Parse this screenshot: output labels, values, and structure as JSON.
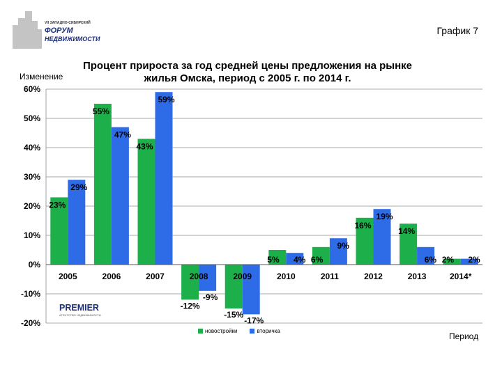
{
  "header": {
    "logo_line1": "VII ЗАПАДНО-СИБИРСКИЙ",
    "logo_line2": "ФОРУМ",
    "logo_line3": "НЕДВИЖИМОСТИ",
    "graph_number": "График 7"
  },
  "footer": {
    "logo_text": "PREMIER",
    "logo_subtext": "АГЕНТСТВО НЕДВИЖИМОСТИ"
  },
  "colors": {
    "new_buildings": "#1db04a",
    "secondary": "#2e6be6"
  },
  "chart_data": {
    "type": "bar",
    "title_line1": "Процент прироста за год средней цены предложения на рынке",
    "title_line2": "жилья Омска, период с 2005 г. по 2014 г.",
    "ylabel": "Изменение",
    "xlabel": "Период",
    "ylim": [
      -20,
      60
    ],
    "yticks": [
      60,
      50,
      40,
      30,
      20,
      10,
      0,
      -10,
      -20
    ],
    "ytick_labels": [
      "60%",
      "50%",
      "40%",
      "30%",
      "20%",
      "10%",
      "0%",
      "-10%",
      "-20%"
    ],
    "grid": true,
    "legend_position": "bottom",
    "categories": [
      "2005",
      "2006",
      "2007",
      "2008",
      "2009",
      "2010",
      "2011",
      "2012",
      "2013",
      "2014*"
    ],
    "series": [
      {
        "name": "новостройки",
        "values": [
          23,
          55,
          43,
          -12,
          -15,
          5,
          6,
          16,
          14,
          2
        ],
        "labels": [
          "23%",
          "55%",
          "43%",
          "-12%",
          "-15%",
          "5%",
          "6%",
          "16%",
          "14%",
          "2%"
        ]
      },
      {
        "name": "вторичка",
        "values": [
          29,
          47,
          59,
          -9,
          -17,
          4,
          9,
          19,
          6,
          2
        ],
        "labels": [
          "29%",
          "47%",
          "59%",
          "-9%",
          "-17%",
          "4%",
          "9%",
          "19%",
          "6%",
          "2%"
        ]
      }
    ]
  }
}
